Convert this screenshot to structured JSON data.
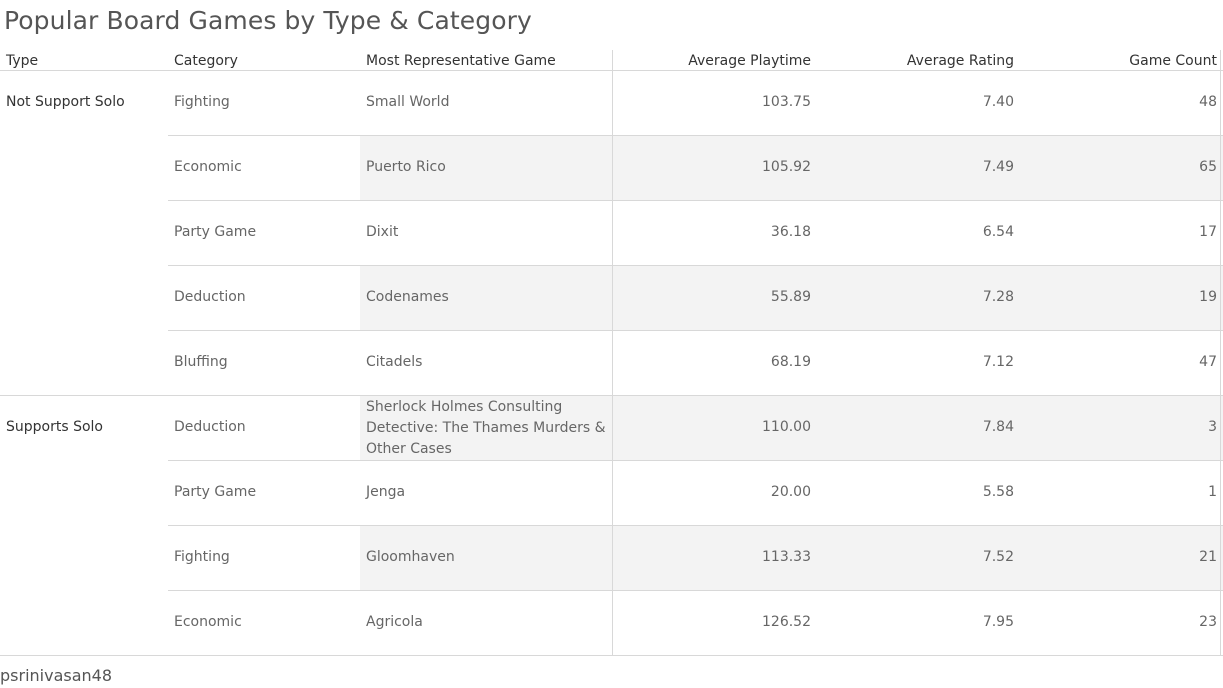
{
  "title": "Popular Board Games by Type & Category",
  "footer": "psrinivasan48",
  "columns": {
    "type": "Type",
    "category": "Category",
    "game": "Most Representative Game",
    "playtime": "Average Playtime",
    "rating": "Average Rating",
    "count": "Game Count"
  },
  "groups": [
    {
      "label": "Not Support Solo",
      "row_start": 0,
      "row_count": 5
    },
    {
      "label": "Supports Solo",
      "row_start": 5,
      "row_count": 4
    }
  ],
  "rows": [
    {
      "category": "Fighting",
      "game": "Small World",
      "playtime": "103.75",
      "rating": "7.40",
      "count": "48"
    },
    {
      "category": "Economic",
      "game": "Puerto Rico",
      "playtime": "105.92",
      "rating": "7.49",
      "count": "65"
    },
    {
      "category": "Party Game",
      "game": "Dixit",
      "playtime": "36.18",
      "rating": "6.54",
      "count": "17"
    },
    {
      "category": "Deduction",
      "game": "Codenames",
      "playtime": "55.89",
      "rating": "7.28",
      "count": "19"
    },
    {
      "category": "Bluffing",
      "game": "Citadels",
      "playtime": "68.19",
      "rating": "7.12",
      "count": "47"
    },
    {
      "category": "Deduction",
      "game": "Sherlock Holmes Consulting Detective: The Thames Murders & Other Cases",
      "playtime": "110.00",
      "rating": "7.84",
      "count": "3"
    },
    {
      "category": "Party Game",
      "game": "Jenga",
      "playtime": "20.00",
      "rating": "5.58",
      "count": "1"
    },
    {
      "category": "Fighting",
      "game": "Gloomhaven",
      "playtime": "113.33",
      "rating": "7.52",
      "count": "21"
    },
    {
      "category": "Economic",
      "game": "Agricola",
      "playtime": "126.52",
      "rating": "7.95",
      "count": "23"
    }
  ],
  "chart_data": {
    "type": "table",
    "title": "Popular Board Games by Type & Category",
    "columns": [
      "Type",
      "Category",
      "Most Representative Game",
      "Average Playtime",
      "Average Rating",
      "Game Count"
    ],
    "rows": [
      [
        "Not Support Solo",
        "Fighting",
        "Small World",
        103.75,
        7.4,
        48
      ],
      [
        "Not Support Solo",
        "Economic",
        "Puerto Rico",
        105.92,
        7.49,
        65
      ],
      [
        "Not Support Solo",
        "Party Game",
        "Dixit",
        36.18,
        6.54,
        17
      ],
      [
        "Not Support Solo",
        "Deduction",
        "Codenames",
        55.89,
        7.28,
        19
      ],
      [
        "Not Support Solo",
        "Bluffing",
        "Citadels",
        68.19,
        7.12,
        47
      ],
      [
        "Supports Solo",
        "Deduction",
        "Sherlock Holmes Consulting Detective: The Thames Murders & Other Cases",
        110.0,
        7.84,
        3
      ],
      [
        "Supports Solo",
        "Party Game",
        "Jenga",
        20.0,
        5.58,
        1
      ],
      [
        "Supports Solo",
        "Fighting",
        "Gloomhaven",
        113.33,
        7.52,
        21
      ],
      [
        "Supports Solo",
        "Economic",
        "Agricola",
        126.52,
        7.95,
        23
      ]
    ]
  }
}
